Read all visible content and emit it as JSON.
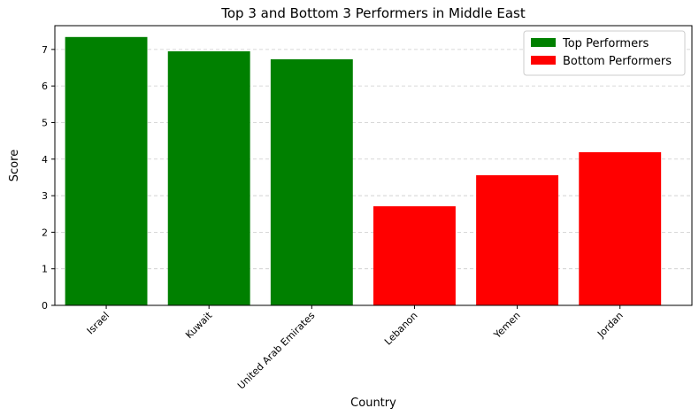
{
  "chart_data": {
    "type": "bar",
    "title": "Top 3 and Bottom 3 Performers in Middle East",
    "x_label": "Country",
    "y_label": "Score",
    "categories": [
      "Israel",
      "Kuwait",
      "United Arab Emirates",
      "Lebanon",
      "Yemen",
      "Jordan"
    ],
    "series": [
      {
        "name": "Top Performers",
        "color": "#008000",
        "values": [
          7.34,
          6.95,
          6.73,
          null,
          null,
          null
        ]
      },
      {
        "name": "Bottom Performers",
        "color": "#ff0000",
        "values": [
          null,
          null,
          null,
          2.71,
          3.56,
          4.19
        ]
      }
    ],
    "ylim": [
      0,
      7.65
    ],
    "yticks": [
      0,
      1,
      2,
      3,
      4,
      5,
      6,
      7
    ],
    "grid": true,
    "legend": "upper right"
  }
}
